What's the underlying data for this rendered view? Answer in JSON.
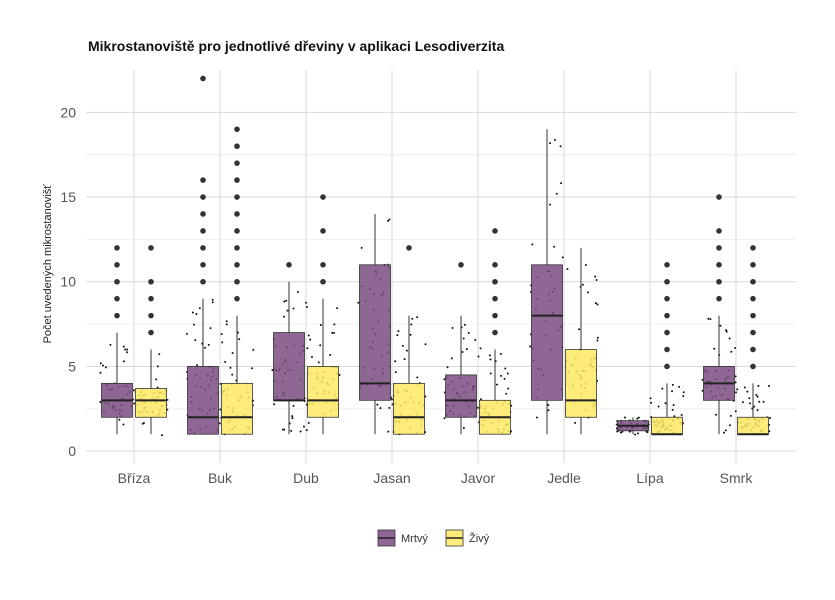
{
  "chart_data": {
    "type": "box",
    "title": "Mikrostanoviště pro jednotlivé dřeviny v aplikaci Lesodiverzita",
    "xlabel": "",
    "ylabel": "Počet uvedených mikrostanovišť",
    "ylim": [
      -0.7,
      22.5
    ],
    "yticks": [
      0,
      5,
      10,
      15,
      20
    ],
    "grid": true,
    "legend_position": "bottom",
    "categories": [
      "Bříza",
      "Buk",
      "Dub",
      "Jasan",
      "Javor",
      "Jedle",
      "Lípa",
      "Smrk"
    ],
    "series": [
      {
        "name": "Mrtvý",
        "color": "#7b4c83",
        "boxes": [
          {
            "q1": 2,
            "median": 3,
            "q3": 4,
            "whisker_low": 1,
            "whisker_high": 7,
            "outliers": [
              8,
              9,
              10,
              11,
              12
            ]
          },
          {
            "q1": 1,
            "median": 2,
            "q3": 5,
            "whisker_low": 1,
            "whisker_high": 9,
            "outliers": [
              10,
              11,
              12,
              13,
              14,
              15,
              16,
              22
            ]
          },
          {
            "q1": 3,
            "median": 3,
            "q3": 7,
            "whisker_low": 1,
            "whisker_high": 10,
            "outliers": [
              11
            ]
          },
          {
            "q1": 3,
            "median": 4,
            "q3": 11,
            "whisker_low": 1,
            "whisker_high": 14,
            "outliers": []
          },
          {
            "q1": 2,
            "median": 3,
            "q3": 4.5,
            "whisker_low": 1,
            "whisker_high": 8,
            "outliers": [
              11
            ]
          },
          {
            "q1": 3,
            "median": 8,
            "q3": 11,
            "whisker_low": 1,
            "whisker_high": 19,
            "outliers": []
          },
          {
            "q1": 1.2,
            "median": 1.5,
            "q3": 1.8,
            "whisker_low": 1,
            "whisker_high": 2,
            "outliers": []
          },
          {
            "q1": 3,
            "median": 4,
            "q3": 5,
            "whisker_low": 1,
            "whisker_high": 8,
            "outliers": [
              9,
              10,
              11,
              12,
              13,
              15
            ]
          }
        ]
      },
      {
        "name": "Živý",
        "color": "#fde961",
        "boxes": [
          {
            "q1": 2,
            "median": 3,
            "q3": 3.7,
            "whisker_low": 1,
            "whisker_high": 6,
            "outliers": [
              7,
              8,
              9,
              10,
              12
            ]
          },
          {
            "q1": 1,
            "median": 2,
            "q3": 4,
            "whisker_low": 1,
            "whisker_high": 8,
            "outliers": [
              9,
              10,
              11,
              12,
              13,
              14,
              15,
              16,
              17,
              18,
              19
            ]
          },
          {
            "q1": 2,
            "median": 3,
            "q3": 5,
            "whisker_low": 1,
            "whisker_high": 9,
            "outliers": [
              10,
              11,
              13,
              15
            ]
          },
          {
            "q1": 1,
            "median": 2,
            "q3": 4,
            "whisker_low": 1,
            "whisker_high": 8,
            "outliers": [
              12
            ]
          },
          {
            "q1": 1,
            "median": 2,
            "q3": 3,
            "whisker_low": 1,
            "whisker_high": 6,
            "outliers": [
              7,
              8,
              9,
              10,
              11,
              13
            ]
          },
          {
            "q1": 2,
            "median": 3,
            "q3": 6,
            "whisker_low": 1,
            "whisker_high": 12,
            "outliers": []
          },
          {
            "q1": 1,
            "median": 1,
            "q3": 2,
            "whisker_low": 1,
            "whisker_high": 4,
            "outliers": [
              5,
              6,
              7,
              8,
              9,
              10,
              11
            ]
          },
          {
            "q1": 1,
            "median": 1,
            "q3": 2,
            "whisker_low": 1,
            "whisker_high": 4,
            "outliers": [
              5,
              6,
              7,
              8,
              9,
              10,
              11,
              12
            ]
          }
        ]
      }
    ]
  }
}
